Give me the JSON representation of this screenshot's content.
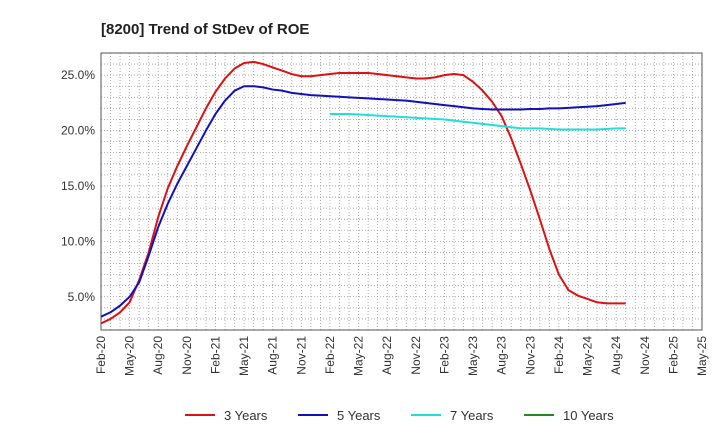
{
  "chart_data": {
    "type": "line",
    "title": "[8200]  Trend of StDev of ROE",
    "xlabel": "",
    "ylabel": "",
    "ylim": [
      2.0,
      27.0
    ],
    "y_ticks": [
      5.0,
      10.0,
      15.0,
      20.0,
      25.0
    ],
    "y_tick_labels": [
      "5.0%",
      "10.0%",
      "15.0%",
      "20.0%",
      "25.0%"
    ],
    "x_tick_labels": [
      "Feb-20",
      "May-20",
      "Aug-20",
      "Nov-20",
      "Feb-21",
      "May-21",
      "Aug-21",
      "Nov-21",
      "Feb-22",
      "May-22",
      "Aug-22",
      "Nov-22",
      "Feb-23",
      "May-23",
      "Aug-23",
      "Nov-23",
      "Feb-24",
      "May-24",
      "Aug-24",
      "Nov-24",
      "Feb-25",
      "May-25"
    ],
    "grid": true,
    "legend_position": "bottom",
    "series": [
      {
        "name": "3 Years",
        "color": "#dd1111",
        "points": [
          [
            0,
            2.6
          ],
          [
            1,
            3.0
          ],
          [
            2,
            3.6
          ],
          [
            3,
            4.5
          ],
          [
            4,
            6.5
          ],
          [
            5,
            9.0
          ],
          [
            6,
            12.2
          ],
          [
            7,
            14.8
          ],
          [
            8,
            16.8
          ],
          [
            9,
            18.6
          ],
          [
            10,
            20.3
          ],
          [
            11,
            22.0
          ],
          [
            12,
            23.5
          ],
          [
            13,
            24.7
          ],
          [
            14,
            25.6
          ],
          [
            15,
            26.1
          ],
          [
            16,
            26.2
          ],
          [
            17,
            26.0
          ],
          [
            18,
            25.7
          ],
          [
            19,
            25.4
          ],
          [
            20,
            25.1
          ],
          [
            21,
            24.9
          ],
          [
            22,
            24.9
          ],
          [
            23,
            25.0
          ],
          [
            24,
            25.1
          ],
          [
            25,
            25.2
          ],
          [
            26,
            25.2
          ],
          [
            27,
            25.2
          ],
          [
            28,
            25.2
          ],
          [
            29,
            25.1
          ],
          [
            30,
            25.0
          ],
          [
            31,
            24.9
          ],
          [
            32,
            24.8
          ],
          [
            33,
            24.7
          ],
          [
            34,
            24.7
          ],
          [
            35,
            24.8
          ],
          [
            36,
            25.0
          ],
          [
            37,
            25.1
          ],
          [
            38,
            25.0
          ],
          [
            39,
            24.4
          ],
          [
            40,
            23.6
          ],
          [
            41,
            22.6
          ],
          [
            42,
            21.3
          ],
          [
            43,
            19.3
          ],
          [
            44,
            17.0
          ],
          [
            45,
            14.6
          ],
          [
            46,
            12.0
          ],
          [
            47,
            9.3
          ],
          [
            48,
            7.0
          ],
          [
            49,
            5.6
          ],
          [
            50,
            5.1
          ],
          [
            51,
            4.8
          ],
          [
            52,
            4.5
          ],
          [
            53,
            4.4
          ],
          [
            54,
            4.4
          ],
          [
            55,
            4.4
          ]
        ]
      },
      {
        "name": "5 Years",
        "color": "#1111bb",
        "points": [
          [
            0,
            3.2
          ],
          [
            1,
            3.6
          ],
          [
            2,
            4.2
          ],
          [
            3,
            5.0
          ],
          [
            4,
            6.3
          ],
          [
            5,
            8.7
          ],
          [
            6,
            11.3
          ],
          [
            7,
            13.4
          ],
          [
            8,
            15.2
          ],
          [
            9,
            16.8
          ],
          [
            10,
            18.4
          ],
          [
            11,
            20.0
          ],
          [
            12,
            21.5
          ],
          [
            13,
            22.7
          ],
          [
            14,
            23.6
          ],
          [
            15,
            24.0
          ],
          [
            16,
            24.0
          ],
          [
            17,
            23.9
          ],
          [
            18,
            23.7
          ],
          [
            19,
            23.6
          ],
          [
            20,
            23.4
          ],
          [
            21,
            23.3
          ],
          [
            22,
            23.2
          ],
          [
            23,
            23.15
          ],
          [
            24,
            23.1
          ],
          [
            25,
            23.05
          ],
          [
            26,
            23.0
          ],
          [
            27,
            22.95
          ],
          [
            28,
            22.9
          ],
          [
            29,
            22.85
          ],
          [
            30,
            22.8
          ],
          [
            31,
            22.75
          ],
          [
            32,
            22.7
          ],
          [
            33,
            22.6
          ],
          [
            34,
            22.5
          ],
          [
            35,
            22.4
          ],
          [
            36,
            22.3
          ],
          [
            37,
            22.2
          ],
          [
            38,
            22.1
          ],
          [
            39,
            22.0
          ],
          [
            40,
            21.95
          ],
          [
            41,
            21.9
          ],
          [
            42,
            21.9
          ],
          [
            43,
            21.9
          ],
          [
            44,
            21.9
          ],
          [
            45,
            21.95
          ],
          [
            46,
            21.95
          ],
          [
            47,
            22.0
          ],
          [
            48,
            22.0
          ],
          [
            49,
            22.05
          ],
          [
            50,
            22.1
          ],
          [
            51,
            22.15
          ],
          [
            52,
            22.2
          ],
          [
            53,
            22.3
          ],
          [
            54,
            22.4
          ],
          [
            55,
            22.5
          ]
        ]
      },
      {
        "name": "7 Years",
        "color": "#22dddd",
        "points": [
          [
            24,
            21.5
          ],
          [
            26,
            21.5
          ],
          [
            28,
            21.4
          ],
          [
            30,
            21.3
          ],
          [
            32,
            21.2
          ],
          [
            34,
            21.1
          ],
          [
            36,
            21.0
          ],
          [
            38,
            20.8
          ],
          [
            40,
            20.6
          ],
          [
            42,
            20.4
          ],
          [
            44,
            20.2
          ],
          [
            46,
            20.2
          ],
          [
            48,
            20.1
          ],
          [
            50,
            20.1
          ],
          [
            52,
            20.1
          ],
          [
            54,
            20.2
          ],
          [
            55,
            20.2
          ]
        ]
      },
      {
        "name": "10 Years",
        "color": "#228822",
        "points": []
      }
    ]
  }
}
